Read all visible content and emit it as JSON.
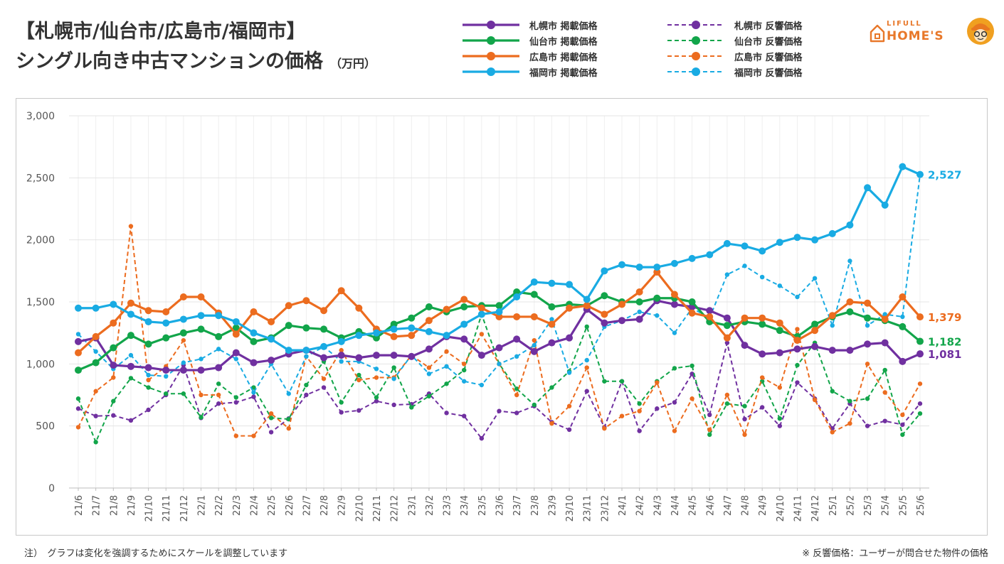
{
  "title": {
    "line1": "【札幌市/仙台市/広島市/福岡市】",
    "line2": "シングル向き中古マンションの価格",
    "unit": "（万円）"
  },
  "brand": {
    "small": "LIFULL",
    "big": "HOME'S"
  },
  "legend": {
    "items": [
      {
        "label": "札幌市 掲載価格",
        "color": "#7030a0",
        "dashed": false
      },
      {
        "label": "仙台市 掲載価格",
        "color": "#12a54a",
        "dashed": false
      },
      {
        "label": "広島市 掲載価格",
        "color": "#ec6c1f",
        "dashed": false
      },
      {
        "label": "福岡市 掲載価格",
        "color": "#19abe3",
        "dashed": false
      },
      {
        "label": "札幌市 反響価格",
        "color": "#7030a0",
        "dashed": true
      },
      {
        "label": "仙台市 反響価格",
        "color": "#12a54a",
        "dashed": true
      },
      {
        "label": "広島市 反響価格",
        "color": "#ec6c1f",
        "dashed": true
      },
      {
        "label": "福岡市 反響価格",
        "color": "#19abe3",
        "dashed": true
      }
    ]
  },
  "notes": {
    "left": "注）　グラフは変化を強調するためにスケールを調整しています",
    "right": "※ 反響価格：ユーザーが問合せた物件の価格"
  },
  "chart_data": {
    "type": "line",
    "title": "【札幌市/仙台市/広島市/福岡市】シングル向き中古マンションの価格",
    "ylabel": "（万円）",
    "ylim": [
      0,
      3000
    ],
    "yticks": [
      0,
      500,
      1000,
      1500,
      2000,
      2500,
      3000
    ],
    "ytick_labels": [
      "0",
      "500",
      "1,000",
      "1,500",
      "2,000",
      "2,500",
      "3,000"
    ],
    "grid": true,
    "legend_position": "top",
    "x": [
      "21/6",
      "21/7",
      "21/8",
      "21/9",
      "21/10",
      "21/11",
      "21/12",
      "22/1",
      "22/2",
      "22/3",
      "22/4",
      "22/5",
      "22/6",
      "22/7",
      "22/8",
      "22/9",
      "22/10",
      "22/11",
      "22/12",
      "23/1",
      "23/2",
      "23/3",
      "23/4",
      "23/5",
      "23/6",
      "23/7",
      "23/8",
      "23/9",
      "23/10",
      "23/11",
      "23/12",
      "24/1",
      "24/2",
      "24/3",
      "24/4",
      "24/5",
      "24/6",
      "24/7",
      "24/8",
      "24/9",
      "24/10",
      "24/11",
      "24/12",
      "25/1",
      "25/2",
      "25/3",
      "25/4",
      "25/5",
      "25/6"
    ],
    "series": [
      {
        "name": "札幌市 反響価格",
        "color": "#7030a0",
        "dashed": true,
        "values": [
          640,
          580,
          585,
          545,
          630,
          750,
          990,
          565,
          680,
          690,
          735,
          450,
          560,
          750,
          810,
          610,
          625,
          700,
          670,
          675,
          760,
          605,
          580,
          400,
          620,
          605,
          660,
          530,
          470,
          780,
          490,
          860,
          460,
          640,
          690,
          920,
          590,
          1170,
          555,
          650,
          500,
          850,
          720,
          480,
          680,
          500,
          540,
          510,
          680
        ]
      },
      {
        "name": "仙台市 反響価格",
        "color": "#12a54a",
        "dashed": true,
        "values": [
          720,
          370,
          700,
          885,
          810,
          760,
          760,
          570,
          840,
          730,
          810,
          565,
          555,
          830,
          1020,
          690,
          910,
          730,
          970,
          650,
          740,
          840,
          950,
          1400,
          1000,
          800,
          670,
          810,
          940,
          1300,
          860,
          860,
          680,
          860,
          965,
          985,
          430,
          680,
          660,
          860,
          560,
          990,
          1170,
          780,
          700,
          720,
          950,
          430,
          600
        ]
      },
      {
        "name": "広島市 反響価格",
        "color": "#ec6c1f",
        "dashed": true,
        "values": [
          490,
          780,
          890,
          2110,
          870,
          980,
          1190,
          750,
          750,
          420,
          420,
          600,
          480,
          1060,
          880,
          1110,
          870,
          890,
          890,
          1070,
          970,
          1100,
          1000,
          1240,
          1000,
          750,
          1190,
          520,
          660,
          970,
          480,
          580,
          620,
          850,
          460,
          720,
          470,
          750,
          430,
          890,
          810,
          1280,
          710,
          450,
          520,
          1000,
          770,
          590,
          840
        ]
      },
      {
        "name": "福岡市 反響価格",
        "color": "#19abe3",
        "dashed": true,
        "values": [
          1240,
          1100,
          960,
          1070,
          910,
          900,
          1010,
          1040,
          1120,
          1040,
          770,
          1000,
          760,
          1060,
          1140,
          1020,
          1020,
          960,
          880,
          1070,
          920,
          980,
          860,
          830,
          1000,
          1060,
          1150,
          1360,
          930,
          1030,
          1300,
          1350,
          1420,
          1390,
          1250,
          1450,
          1370,
          1720,
          1790,
          1700,
          1630,
          1540,
          1690,
          1310,
          1830,
          1310,
          1400,
          1380,
          2527
        ]
      },
      {
        "name": "札幌市 掲載価格",
        "color": "#7030a0",
        "dashed": false,
        "values": [
          1180,
          1210,
          990,
          980,
          970,
          950,
          950,
          950,
          970,
          1090,
          1010,
          1030,
          1080,
          1110,
          1050,
          1070,
          1050,
          1070,
          1070,
          1060,
          1120,
          1220,
          1200,
          1070,
          1130,
          1200,
          1100,
          1170,
          1210,
          1440,
          1330,
          1350,
          1360,
          1510,
          1480,
          1460,
          1430,
          1370,
          1150,
          1080,
          1090,
          1120,
          1140,
          1110,
          1110,
          1160,
          1170,
          1020,
          1081
        ]
      },
      {
        "name": "仙台市 掲載価格",
        "color": "#12a54a",
        "dashed": false,
        "values": [
          950,
          1010,
          1130,
          1230,
          1160,
          1210,
          1250,
          1280,
          1220,
          1290,
          1180,
          1210,
          1310,
          1290,
          1280,
          1210,
          1260,
          1210,
          1320,
          1370,
          1460,
          1420,
          1460,
          1470,
          1470,
          1580,
          1560,
          1460,
          1480,
          1470,
          1550,
          1500,
          1500,
          1530,
          1530,
          1500,
          1340,
          1310,
          1340,
          1320,
          1270,
          1220,
          1320,
          1380,
          1420,
          1370,
          1350,
          1300,
          1182
        ]
      },
      {
        "name": "広島市 掲載価格",
        "color": "#ec6c1f",
        "dashed": false,
        "values": [
          1090,
          1220,
          1330,
          1490,
          1430,
          1420,
          1540,
          1540,
          1410,
          1240,
          1420,
          1340,
          1470,
          1510,
          1430,
          1590,
          1450,
          1280,
          1220,
          1230,
          1350,
          1440,
          1520,
          1450,
          1380,
          1380,
          1380,
          1320,
          1450,
          1470,
          1400,
          1480,
          1580,
          1740,
          1560,
          1410,
          1380,
          1210,
          1370,
          1370,
          1330,
          1190,
          1270,
          1390,
          1500,
          1490,
          1360,
          1540,
          1379
        ]
      },
      {
        "name": "福岡市 掲載価格",
        "color": "#19abe3",
        "dashed": false,
        "values": [
          1450,
          1450,
          1480,
          1400,
          1340,
          1330,
          1360,
          1390,
          1390,
          1340,
          1250,
          1200,
          1110,
          1110,
          1140,
          1180,
          1230,
          1250,
          1280,
          1290,
          1260,
          1230,
          1320,
          1400,
          1420,
          1540,
          1660,
          1650,
          1640,
          1520,
          1750,
          1800,
          1780,
          1780,
          1810,
          1850,
          1880,
          1970,
          1950,
          1910,
          1980,
          2020,
          2000,
          2050,
          2120,
          2420,
          2280,
          2590,
          2527
        ]
      }
    ],
    "end_labels": [
      {
        "text": "2,527",
        "color": "#19abe3",
        "value": 2527
      },
      {
        "text": "1,379",
        "color": "#ec6c1f",
        "value": 1379
      },
      {
        "text": "1,182",
        "color": "#12a54a",
        "value": 1182
      },
      {
        "text": "1,081",
        "color": "#7030a0",
        "value": 1081
      }
    ]
  }
}
